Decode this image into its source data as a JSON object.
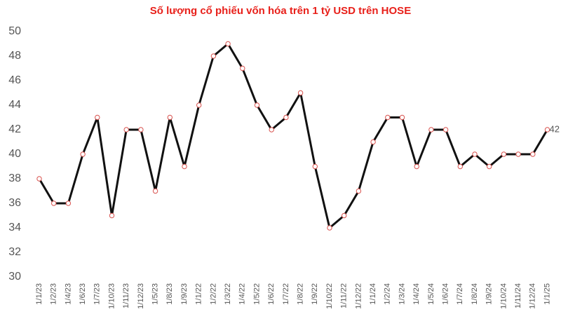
{
  "chart_data": {
    "type": "line",
    "title": "Số lượng cổ phiếu vốn hóa trên 1 tỷ USD trên HOSE",
    "categories": [
      "1/1/23",
      "1/2/23",
      "1/4/23",
      "1/6/23",
      "1/7/23",
      "1/10/23",
      "1/11/23",
      "1/12/23",
      "1/5/23",
      "1/8/23",
      "1/9/23",
      "1/1/22",
      "1/2/22",
      "1/3/22",
      "1/4/22",
      "1/5/22",
      "1/6/22",
      "1/7/22",
      "1/8/22",
      "1/9/22",
      "1/10/22",
      "1/11/22",
      "1/12/22",
      "1/1/24",
      "1/2/24",
      "1/3/24",
      "1/4/24",
      "1/5/24",
      "1/6/24",
      "1/7/24",
      "1/8/24",
      "1/9/24",
      "1/10/24",
      "1/11/24",
      "1/12/24",
      "1/1/25"
    ],
    "series": [
      {
        "color": "#111111",
        "marker_color": "#d9534f",
        "values": [
          38,
          36,
          36,
          40,
          43,
          35,
          42,
          42,
          37,
          43,
          39,
          44,
          48,
          49,
          47,
          44,
          42,
          43,
          45,
          39,
          34,
          35,
          37,
          41,
          43,
          43,
          39,
          42,
          42,
          39,
          40,
          39,
          40,
          40,
          40,
          42
        ]
      }
    ],
    "ylim": [
      30,
      50
    ],
    "yticks": [
      30,
      32,
      34,
      36,
      38,
      40,
      42,
      44,
      46,
      48,
      50
    ],
    "grid": false
  }
}
